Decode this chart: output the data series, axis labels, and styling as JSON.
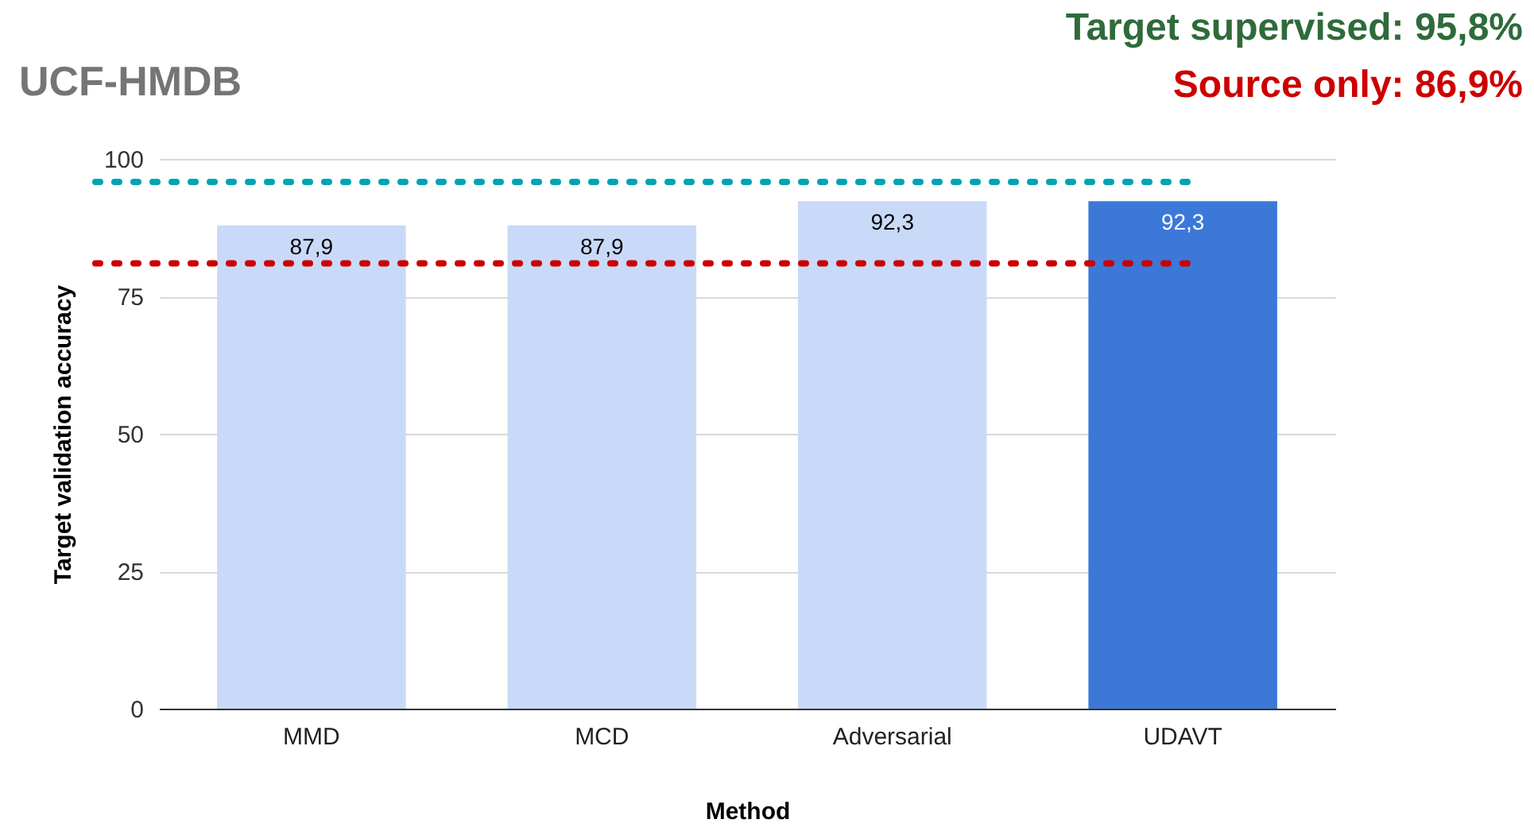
{
  "chart_data": {
    "type": "bar",
    "title": "UCF-HMDB",
    "xlabel": "Method",
    "ylabel": "Target validation accuracy",
    "categories": [
      "MMD",
      "MCD",
      "Adversarial",
      "UDAVT"
    ],
    "values": [
      87.9,
      87.9,
      92.3,
      92.3
    ],
    "colors": [
      "#c9daf8",
      "#c9daf8",
      "#c9daf8",
      "#3c78d8"
    ],
    "value_labels": [
      "87,9",
      "87,9",
      "92,3",
      "92,3"
    ],
    "ylim": [
      0,
      100
    ],
    "yticks": [
      0,
      25,
      50,
      75,
      100
    ],
    "grid": "y",
    "annotations": [
      "Target supervised: 95,8%",
      "Source only: 86,9%"
    ],
    "ref_lines": [
      {
        "axis": "y",
        "value": 95.8,
        "color": "#00a3b4",
        "line_style": "dotted"
      },
      {
        "axis": "y",
        "value": 81,
        "color": "#cc0000",
        "line_style": "dotted"
      }
    ]
  }
}
